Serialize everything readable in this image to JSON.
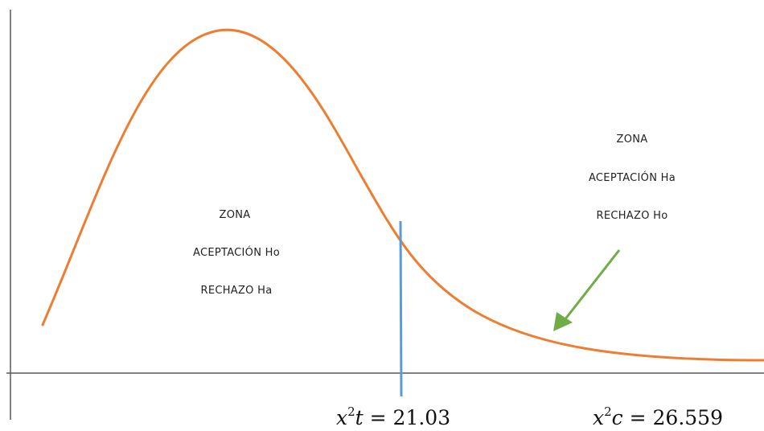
{
  "zone_left": {
    "line1": "ZONA",
    "line2": "ACEPTACIÓN Ho",
    "line3": "RECHAZO Ha"
  },
  "zone_right": {
    "line1": "ZONA",
    "line2": "ACEPTACIÓN Ha",
    "line3": "RECHAZO Ho"
  },
  "critical_label": {
    "var": "x",
    "exp": "2",
    "sub": "t",
    "eq": " = ",
    "value": "21.03"
  },
  "calc_label": {
    "var": "x",
    "exp": "2",
    "sub": "c",
    "eq": " = ",
    "value": "26.559"
  },
  "colors": {
    "curve": "#ED7D31",
    "critical_line": "#5B9BD5",
    "arrow": "#70AD47",
    "axes": "#595959"
  }
}
